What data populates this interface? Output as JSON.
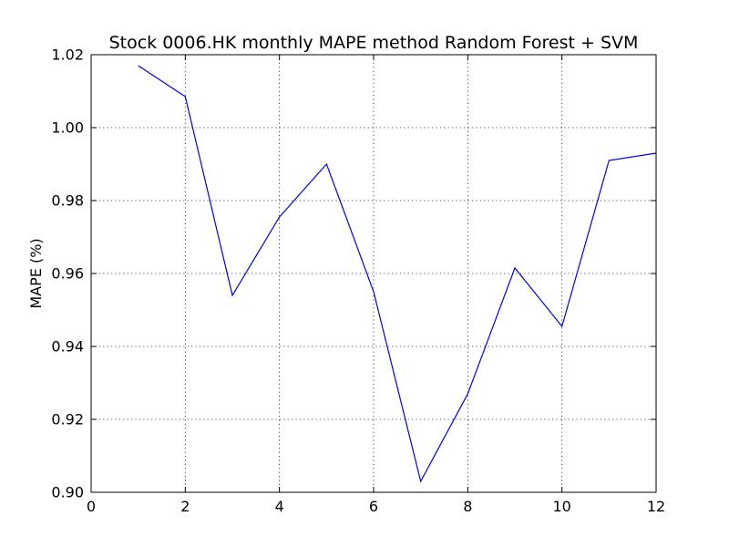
{
  "chart_data": {
    "type": "line",
    "title": "Stock 0006.HK monthly MAPE method Random Forest + SVM",
    "xlabel": "",
    "ylabel": "MAPE (%)",
    "xlim": [
      0,
      12
    ],
    "ylim": [
      0.9,
      1.02
    ],
    "xticks": [
      0,
      2,
      4,
      6,
      8,
      10,
      12
    ],
    "yticks": [
      0.9,
      0.92,
      0.94,
      0.96,
      0.98,
      1.0,
      1.02
    ],
    "xtick_labels": [
      "0",
      "2",
      "4",
      "6",
      "8",
      "10",
      "12"
    ],
    "ytick_labels": [
      "0.90",
      "0.92",
      "0.94",
      "0.96",
      "0.98",
      "1.00",
      "1.02"
    ],
    "grid": true,
    "series": [
      {
        "color": "#0000ff",
        "x": [
          1,
          2,
          3,
          4,
          5,
          6,
          7,
          8,
          9,
          10,
          11,
          12
        ],
        "y": [
          1.017,
          1.0085,
          0.954,
          0.9755,
          0.99,
          0.955,
          0.903,
          0.927,
          0.9615,
          0.9455,
          0.991,
          0.993
        ]
      }
    ]
  }
}
